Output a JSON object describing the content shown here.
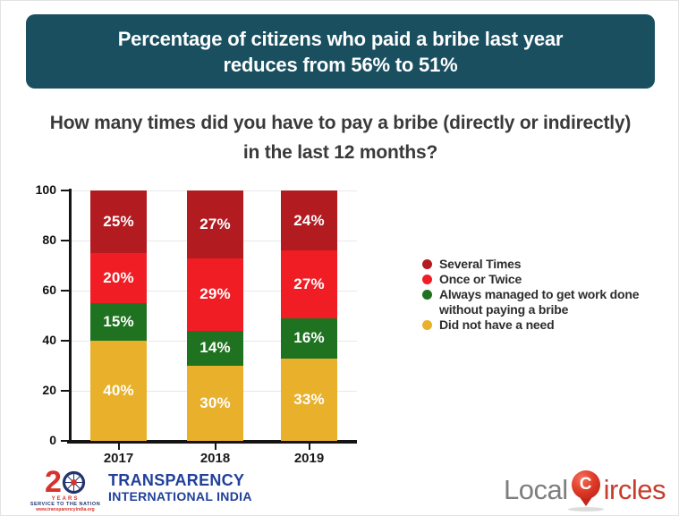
{
  "banner": {
    "line1": "Percentage of citizens who paid a bribe last year",
    "line2": "reduces from 56% to 51%",
    "bg_color": "#1a4f60"
  },
  "question": {
    "line1": "How many times did you have to pay a bribe (directly or indirectly)",
    "line2": "in the last 12 months?"
  },
  "chart_data": {
    "type": "bar",
    "variant": "stacked-column",
    "title": "Percentage of citizens who paid a bribe last year reduces from 56% to 51%",
    "subtitle": "How many times did you have to pay a bribe (directly or indirectly) in the last 12 months?",
    "categories": [
      "2017",
      "2018",
      "2019"
    ],
    "series": [
      {
        "name": "Did not have a need",
        "color": "#E9B02B",
        "values": [
          40,
          30,
          33
        ]
      },
      {
        "name": "Always managed to get work done without paying a bribe",
        "color": "#1F7220",
        "values": [
          15,
          14,
          16
        ]
      },
      {
        "name": "Once or Twice",
        "color": "#F01E24",
        "values": [
          20,
          29,
          27
        ]
      },
      {
        "name": "Several Times",
        "color": "#B21B20",
        "values": [
          25,
          27,
          24
        ]
      }
    ],
    "stack_order": "bottom-to-top",
    "value_label_format": "percent",
    "xlabel": "",
    "ylabel": "",
    "ylim": [
      0,
      100
    ],
    "yticks": [
      0,
      20,
      40,
      60,
      80,
      100
    ],
    "grid": true,
    "legend_position": "right"
  },
  "legend": {
    "items": [
      {
        "label": "Several Times",
        "color": "#B21B20"
      },
      {
        "label": "Once or Twice",
        "color": "#F01E24"
      },
      {
        "label": "Always managed to get work done without paying a bribe",
        "color": "#1F7220"
      },
      {
        "label": "Did not have a need",
        "color": "#E9B02B"
      }
    ]
  },
  "footer": {
    "tii": {
      "big_number": "2",
      "years": "YEARS",
      "tagline": "SERVICE TO THE NATION",
      "url": "www.transparencyindia.org",
      "org_line1": "TRANSPARENCY",
      "org_line2": "INTERNATIONAL INDIA"
    },
    "localcircles": {
      "prefix": "Local",
      "pin_letter": "C",
      "suffix": "ircles"
    }
  }
}
